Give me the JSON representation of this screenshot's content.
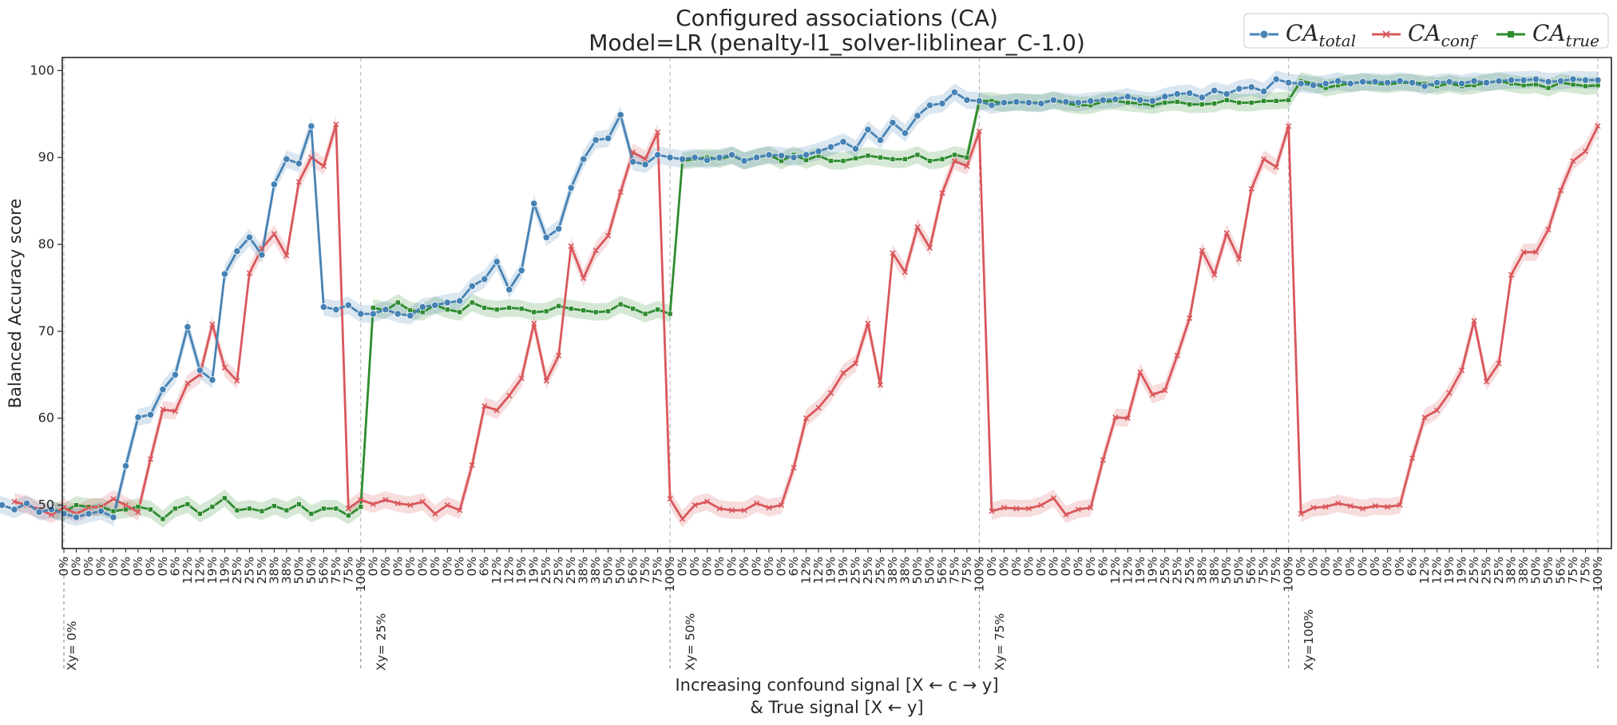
{
  "chart_data": {
    "type": "line",
    "title_line1": "Configured associations (CA)",
    "title_line2": "Model=LR (penalty-l1_solver-liblinear_C-1.0)",
    "ylabel": "Balanced Accuracy score",
    "xlabel_line1": "Increasing confound signal [X ← c → y]",
    "xlabel_line2": "&   True signal  [X ← y]",
    "ylim": [
      45,
      101.5
    ],
    "yticks": [
      50,
      60,
      70,
      80,
      90,
      100
    ],
    "groups": [
      "Xy=  0%",
      "Xy= 25%",
      "Xy= 50%",
      "Xy= 75%",
      "Xy=100%"
    ],
    "group_tick_labels": [
      "0%",
      "0%",
      "0%",
      "0%",
      "0%",
      "0%",
      "0%",
      "0%",
      "0%",
      "6%",
      "12%",
      "12%",
      "19%",
      "19%",
      "25%",
      "25%",
      "25%",
      "38%",
      "38%",
      "50%",
      "50%",
      "56%",
      "75%",
      "75%",
      "100%"
    ],
    "grid": "dashed vertical lines at group boundaries",
    "legend_position": "top-right",
    "legend": [
      {
        "key": "total",
        "main": "CA",
        "sub": "total",
        "color": "#4682b4",
        "marker": "circle"
      },
      {
        "key": "conf",
        "main": "CA",
        "sub": "conf",
        "color": "#d9575b",
        "marker": "x"
      },
      {
        "key": "true",
        "main": "CA",
        "sub": "true",
        "color": "#2e8b2e",
        "marker": "square"
      }
    ],
    "series": {
      "total": [
        50.2,
        50.0,
        49.5,
        50.2,
        49.2,
        49.5,
        49.0,
        48.6,
        49.0,
        49.3,
        48.6,
        54.5,
        60.1,
        60.4,
        63.3,
        65.0,
        70.5,
        65.5,
        64.4,
        76.6,
        79.2,
        80.8,
        78.8,
        86.9,
        89.8,
        89.3,
        93.6,
        72.8,
        72.5,
        73.0,
        72.0,
        72.0,
        72.5,
        72.0,
        71.8,
        72.8,
        73.0,
        73.3,
        73.5,
        75.2,
        76.0,
        78.0,
        74.8,
        77.0,
        84.7,
        80.8,
        81.8,
        86.5,
        89.8,
        92.0,
        92.2,
        94.9,
        89.5,
        89.2,
        90.3,
        90.0,
        89.8,
        90.0,
        89.7,
        90.0,
        90.3,
        89.6,
        90.0,
        90.3,
        90.2,
        90.0,
        90.3,
        90.7,
        91.2,
        91.8,
        91.0,
        93.2,
        92.0,
        94.0,
        92.8,
        94.8,
        96.0,
        96.2,
        97.5,
        96.6,
        96.5,
        96.0,
        96.3,
        96.4,
        96.3,
        96.2,
        96.6,
        96.4,
        96.3,
        96.5,
        96.6,
        96.7,
        97.0,
        96.6,
        96.5,
        97.0,
        97.3,
        97.4,
        96.9,
        97.7,
        97.3,
        97.9,
        98.1,
        97.6,
        99.0,
        98.6,
        98.5,
        98.3,
        98.5,
        98.8,
        98.5,
        98.7,
        98.7,
        98.6,
        98.8,
        98.6,
        98.2,
        98.6,
        98.7,
        98.5,
        98.8,
        98.6,
        98.8,
        98.9,
        98.9,
        99.0,
        98.7,
        98.8,
        99.0,
        98.9,
        98.9
      ],
      "conf": [
        50.4,
        50.0,
        49.5,
        48.9,
        49.7,
        49.0,
        49.7,
        49.8,
        50.7,
        50.0,
        49.2,
        55.3,
        61.0,
        60.8,
        64.0,
        65.0,
        70.8,
        65.8,
        64.3,
        76.7,
        79.5,
        81.2,
        78.7,
        87.2,
        90.0,
        89.0,
        93.8,
        49.6,
        50.6,
        50.1,
        50.6,
        50.2,
        50.0,
        50.4,
        49.0,
        50.0,
        49.4,
        54.6,
        61.4,
        60.9,
        62.6,
        64.6,
        70.9,
        64.3,
        67.2,
        79.8,
        76.1,
        79.3,
        81.0,
        86.0,
        90.6,
        89.8,
        92.9,
        50.7,
        48.4,
        50.0,
        50.4,
        49.6,
        49.4,
        49.4,
        50.2,
        49.7,
        50.0,
        54.3,
        60.0,
        61.2,
        62.9,
        65.2,
        66.3,
        70.9,
        63.8,
        79.0,
        76.8,
        82.0,
        79.6,
        85.9,
        89.6,
        89.0,
        93.0,
        49.3,
        49.7,
        49.6,
        49.6,
        50.0,
        50.8,
        48.9,
        49.5,
        49.7,
        55.2,
        60.1,
        60.0,
        65.3,
        62.7,
        63.2,
        67.2,
        71.5,
        79.3,
        76.5,
        81.3,
        78.3,
        86.4,
        89.8,
        88.9,
        93.6,
        49.0,
        49.7,
        49.8,
        50.2,
        49.9,
        49.6,
        49.9,
        49.8,
        50.0,
        55.4,
        60.1,
        60.9,
        62.9,
        65.5,
        71.2,
        64.2,
        66.3,
        76.5,
        79.1,
        79.1,
        81.7,
        86.2,
        89.6,
        90.7,
        93.6
      ],
      "true": [
        49.5,
        49.2,
        50.0,
        49.8,
        49.8,
        49.3,
        49.5,
        49.8,
        49.5,
        48.4,
        49.6,
        50.1,
        49.0,
        49.8,
        50.8,
        49.4,
        49.6,
        49.3,
        49.9,
        49.4,
        50.1,
        49.0,
        49.6,
        49.6,
        48.8,
        49.8,
        72.7,
        72.4,
        73.3,
        72.4,
        72.2,
        73.0,
        72.5,
        72.2,
        73.3,
        72.7,
        72.5,
        72.7,
        72.6,
        72.2,
        72.3,
        72.9,
        72.6,
        72.4,
        72.2,
        72.3,
        73.1,
        72.6,
        72.0,
        72.5,
        72.0,
        89.6,
        89.8,
        90.0,
        89.8,
        90.2,
        89.6,
        90.0,
        90.3,
        89.6,
        90.3,
        89.7,
        90.2,
        89.6,
        89.6,
        89.9,
        90.2,
        90.0,
        89.8,
        89.8,
        90.3,
        89.6,
        89.8,
        90.3,
        90.0,
        96.5,
        96.5,
        96.2,
        96.4,
        96.3,
        96.3,
        96.6,
        96.2,
        96.0,
        96.0,
        96.4,
        96.5,
        96.3,
        96.2,
        96.0,
        96.3,
        96.4,
        96.1,
        96.1,
        96.2,
        96.6,
        96.3,
        96.3,
        96.5,
        96.5,
        96.6,
        98.8,
        98.5,
        98.0,
        98.3,
        98.5,
        98.7,
        98.5,
        98.4,
        98.6,
        98.6,
        98.5,
        98.2,
        98.5,
        98.2,
        98.3,
        98.6,
        98.8,
        98.5,
        98.3,
        98.4,
        98.0,
        98.6,
        98.4,
        98.2,
        98.3
      ]
    }
  }
}
